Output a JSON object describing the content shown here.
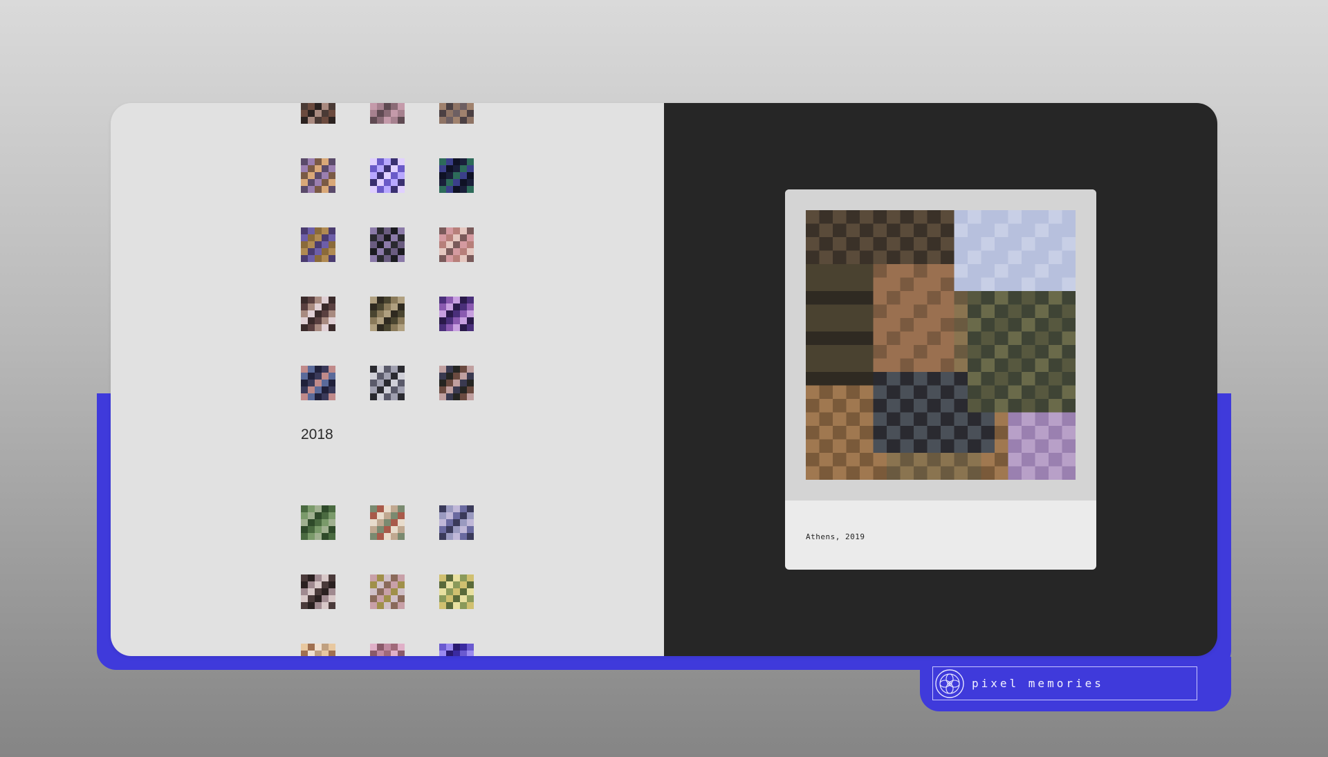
{
  "app": {
    "brand_name": "pixel memories",
    "brand_icon": "flower-logo-icon",
    "accent_color": "#3f3adb"
  },
  "gallery": {
    "sections": [
      {
        "year": "",
        "rows": [
          [
            "portrait-dark-hair",
            "woman-pink-top",
            "sunset-field"
          ],
          [
            "friends-warm-light",
            "purple-stage-lights",
            "night-neon"
          ],
          [
            "purple-sky-building",
            "dark-silhouette",
            "pink-sky-hand"
          ],
          [
            "woman-close-up",
            "motorbike-group",
            "purple-night-car"
          ],
          [
            "lake-dusk",
            "motorcycle-rider",
            "man-standing-dark"
          ]
        ]
      },
      {
        "year": "2018",
        "rows": [
          [
            "leafy-statue",
            "fluffy-dog",
            "person-at-sea"
          ],
          [
            "pavilion-silhouette",
            "pink-building",
            "yellow-flowers"
          ],
          [
            "warm-bouquet",
            "pink-petals",
            "purple-lamp"
          ]
        ]
      }
    ]
  },
  "viewer": {
    "caption": "Athens, 2019",
    "photo_subject": "person-holding-camera"
  }
}
